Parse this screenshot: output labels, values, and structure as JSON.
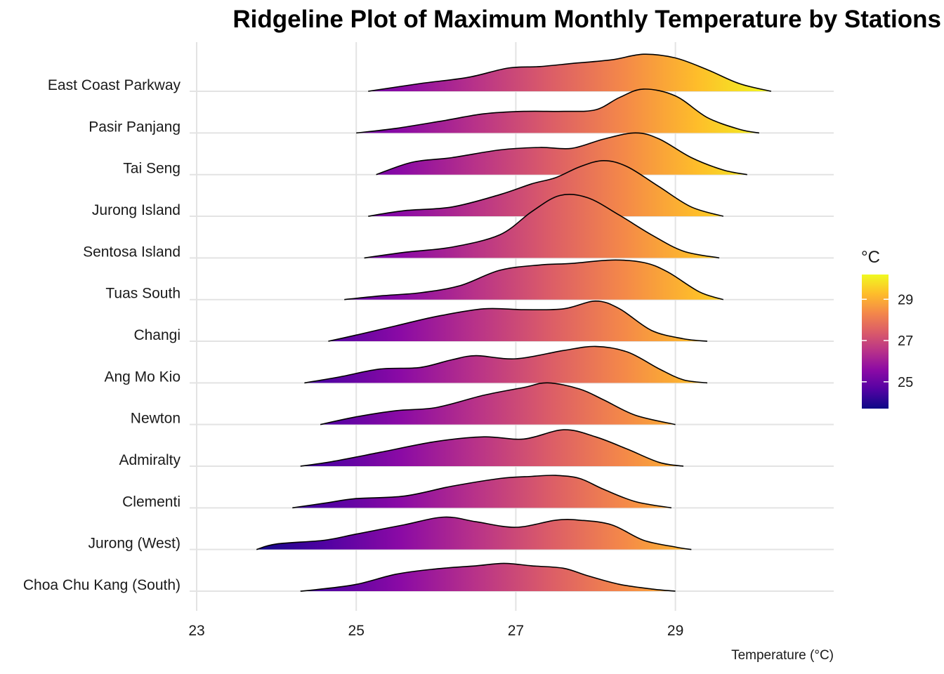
{
  "chart_data": {
    "type": "ridgeline",
    "title": "Ridgeline Plot of Maximum Monthly Temperature by Stations",
    "xlabel": "Temperature (°C)",
    "ylabel": "",
    "xlim": [
      22.9,
      31.0
    ],
    "x_ticks": [
      23,
      25,
      27,
      29
    ],
    "grid": true,
    "color_scale": {
      "name": "plasma",
      "title": "°C",
      "range": [
        23.7,
        30.2
      ],
      "ticks": [
        25,
        27,
        29
      ],
      "stops": [
        "#0d0887",
        "#5302a3",
        "#8b0aa5",
        "#b83289",
        "#db5c68",
        "#f48849",
        "#febd2a",
        "#f0f921"
      ]
    },
    "series": [
      {
        "name": "Choa Chu Kang (South)",
        "range": [
          24.3,
          29.0
        ],
        "density": [
          [
            24.3,
            0
          ],
          [
            24.5,
            0.05
          ],
          [
            25.0,
            0.22
          ],
          [
            25.5,
            0.55
          ],
          [
            26.0,
            0.72
          ],
          [
            26.5,
            0.82
          ],
          [
            26.85,
            0.9
          ],
          [
            27.2,
            0.82
          ],
          [
            27.6,
            0.74
          ],
          [
            27.9,
            0.5
          ],
          [
            28.3,
            0.22
          ],
          [
            28.7,
            0.07
          ],
          [
            29.0,
            0
          ]
        ]
      },
      {
        "name": "Jurong (West)",
        "range": [
          23.75,
          29.2
        ],
        "density": [
          [
            23.75,
            0
          ],
          [
            24.0,
            0.18
          ],
          [
            24.6,
            0.3
          ],
          [
            25.0,
            0.5
          ],
          [
            25.6,
            0.8
          ],
          [
            26.1,
            1.05
          ],
          [
            26.5,
            0.9
          ],
          [
            27.0,
            0.72
          ],
          [
            27.5,
            0.95
          ],
          [
            27.8,
            0.95
          ],
          [
            28.2,
            0.8
          ],
          [
            28.6,
            0.3
          ],
          [
            29.0,
            0.08
          ],
          [
            29.2,
            0
          ]
        ]
      },
      {
        "name": "Clementi",
        "range": [
          24.2,
          28.95
        ],
        "density": [
          [
            24.2,
            0
          ],
          [
            24.6,
            0.15
          ],
          [
            25.0,
            0.3
          ],
          [
            25.6,
            0.38
          ],
          [
            26.2,
            0.7
          ],
          [
            26.8,
            0.95
          ],
          [
            27.2,
            1.02
          ],
          [
            27.5,
            1.05
          ],
          [
            27.8,
            0.95
          ],
          [
            28.1,
            0.6
          ],
          [
            28.5,
            0.2
          ],
          [
            28.95,
            0
          ]
        ]
      },
      {
        "name": "Admiralty",
        "range": [
          24.3,
          29.1
        ],
        "density": [
          [
            24.3,
            0
          ],
          [
            24.7,
            0.15
          ],
          [
            25.3,
            0.45
          ],
          [
            26.0,
            0.8
          ],
          [
            26.6,
            0.95
          ],
          [
            27.1,
            0.88
          ],
          [
            27.6,
            1.18
          ],
          [
            28.0,
            0.95
          ],
          [
            28.4,
            0.55
          ],
          [
            28.8,
            0.12
          ],
          [
            29.1,
            0
          ]
        ]
      },
      {
        "name": "Newton",
        "range": [
          24.55,
          29.0
        ],
        "density": [
          [
            24.55,
            0
          ],
          [
            25.0,
            0.25
          ],
          [
            25.5,
            0.45
          ],
          [
            26.0,
            0.55
          ],
          [
            26.6,
            0.95
          ],
          [
            27.1,
            1.2
          ],
          [
            27.4,
            1.35
          ],
          [
            27.8,
            1.15
          ],
          [
            28.1,
            0.8
          ],
          [
            28.5,
            0.3
          ],
          [
            29.0,
            0
          ]
        ]
      },
      {
        "name": "Ang Mo Kio",
        "range": [
          24.35,
          29.4
        ],
        "density": [
          [
            24.35,
            0
          ],
          [
            24.8,
            0.2
          ],
          [
            25.3,
            0.45
          ],
          [
            25.8,
            0.5
          ],
          [
            26.2,
            0.75
          ],
          [
            26.5,
            0.88
          ],
          [
            27.0,
            0.78
          ],
          [
            27.6,
            1.05
          ],
          [
            28.0,
            1.18
          ],
          [
            28.4,
            1.0
          ],
          [
            28.8,
            0.45
          ],
          [
            29.1,
            0.1
          ],
          [
            29.4,
            0
          ]
        ]
      },
      {
        "name": "Changi",
        "range": [
          24.65,
          29.4
        ],
        "density": [
          [
            24.65,
            0
          ],
          [
            25.0,
            0.2
          ],
          [
            25.5,
            0.5
          ],
          [
            26.0,
            0.8
          ],
          [
            26.6,
            1.05
          ],
          [
            27.1,
            1.02
          ],
          [
            27.6,
            1.05
          ],
          [
            28.0,
            1.3
          ],
          [
            28.3,
            1.05
          ],
          [
            28.7,
            0.35
          ],
          [
            29.1,
            0.08
          ],
          [
            29.4,
            0
          ]
        ]
      },
      {
        "name": "Tuas South",
        "range": [
          24.85,
          29.6
        ],
        "density": [
          [
            24.85,
            0
          ],
          [
            25.3,
            0.12
          ],
          [
            25.8,
            0.22
          ],
          [
            26.3,
            0.45
          ],
          [
            26.8,
            0.95
          ],
          [
            27.3,
            1.12
          ],
          [
            27.7,
            1.17
          ],
          [
            28.2,
            1.28
          ],
          [
            28.6,
            1.2
          ],
          [
            28.9,
            0.9
          ],
          [
            29.3,
            0.25
          ],
          [
            29.6,
            0
          ]
        ]
      },
      {
        "name": "Sentosa Island",
        "range": [
          25.1,
          29.55
        ],
        "density": [
          [
            25.1,
            0
          ],
          [
            25.6,
            0.18
          ],
          [
            26.2,
            0.35
          ],
          [
            26.8,
            0.75
          ],
          [
            27.2,
            1.5
          ],
          [
            27.55,
            2.02
          ],
          [
            27.9,
            1.95
          ],
          [
            28.3,
            1.38
          ],
          [
            28.7,
            0.75
          ],
          [
            29.1,
            0.22
          ],
          [
            29.55,
            0
          ]
        ]
      },
      {
        "name": "Jurong Island",
        "range": [
          25.15,
          29.6
        ],
        "density": [
          [
            25.15,
            0
          ],
          [
            25.6,
            0.18
          ],
          [
            26.2,
            0.3
          ],
          [
            26.8,
            0.7
          ],
          [
            27.2,
            1.05
          ],
          [
            27.5,
            1.25
          ],
          [
            27.8,
            1.6
          ],
          [
            28.1,
            1.8
          ],
          [
            28.4,
            1.6
          ],
          [
            28.8,
            0.95
          ],
          [
            29.2,
            0.3
          ],
          [
            29.6,
            0
          ]
        ]
      },
      {
        "name": "Tai Seng",
        "range": [
          25.25,
          29.9
        ],
        "density": [
          [
            25.25,
            0
          ],
          [
            25.7,
            0.4
          ],
          [
            26.2,
            0.55
          ],
          [
            26.8,
            0.8
          ],
          [
            27.3,
            0.88
          ],
          [
            27.7,
            0.85
          ],
          [
            28.1,
            1.15
          ],
          [
            28.5,
            1.35
          ],
          [
            28.8,
            1.15
          ],
          [
            29.2,
            0.55
          ],
          [
            29.6,
            0.15
          ],
          [
            29.9,
            0
          ]
        ]
      },
      {
        "name": "Pasir Panjang",
        "range": [
          25.0,
          30.05
        ],
        "density": [
          [
            25.0,
            0
          ],
          [
            25.5,
            0.15
          ],
          [
            26.1,
            0.4
          ],
          [
            26.6,
            0.62
          ],
          [
            27.1,
            0.7
          ],
          [
            27.6,
            0.7
          ],
          [
            28.0,
            0.75
          ],
          [
            28.3,
            1.15
          ],
          [
            28.6,
            1.42
          ],
          [
            29.0,
            1.2
          ],
          [
            29.4,
            0.5
          ],
          [
            29.8,
            0.12
          ],
          [
            30.05,
            0
          ]
        ]
      },
      {
        "name": "East Coast Parkway",
        "range": [
          25.15,
          30.2
        ],
        "density": [
          [
            25.15,
            0
          ],
          [
            25.8,
            0.25
          ],
          [
            26.4,
            0.45
          ],
          [
            26.9,
            0.75
          ],
          [
            27.3,
            0.8
          ],
          [
            27.7,
            0.9
          ],
          [
            28.2,
            1.02
          ],
          [
            28.6,
            1.2
          ],
          [
            29.0,
            1.08
          ],
          [
            29.4,
            0.7
          ],
          [
            29.8,
            0.25
          ],
          [
            30.2,
            0
          ]
        ]
      }
    ]
  }
}
